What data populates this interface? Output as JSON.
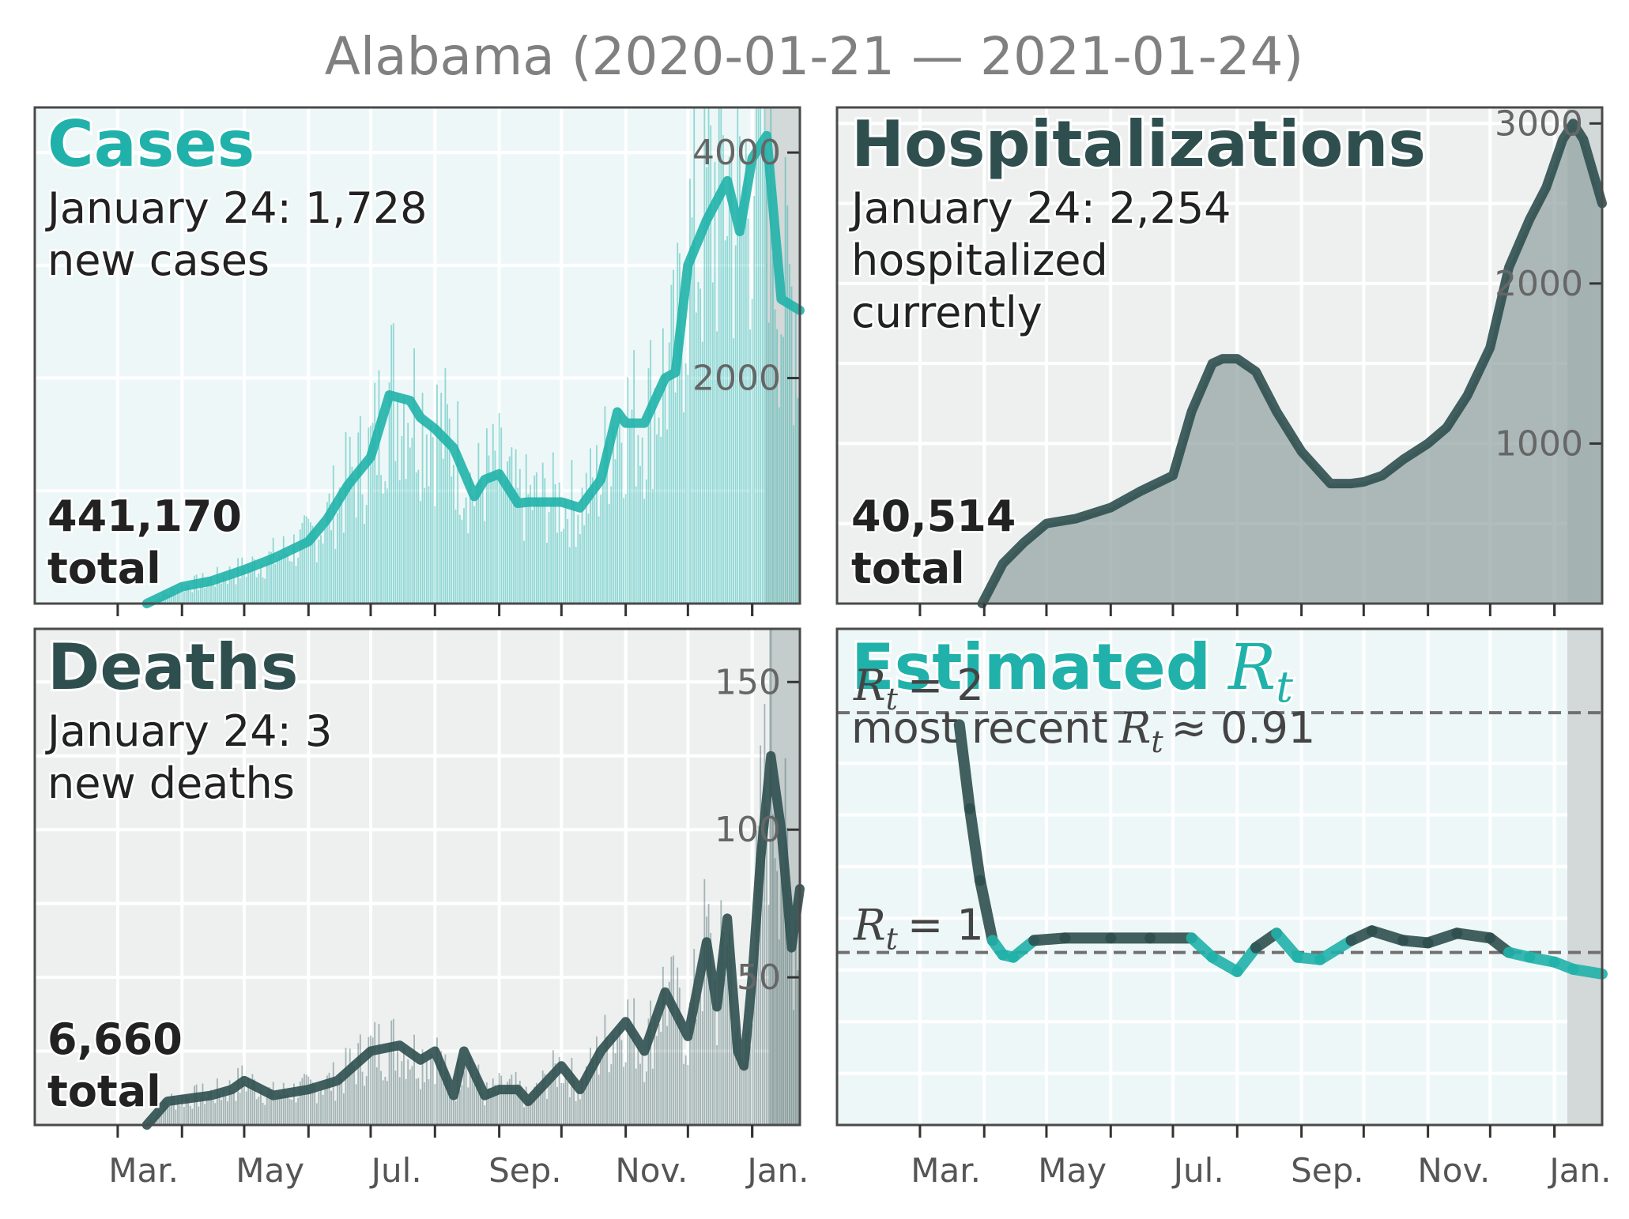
{
  "title": "Alabama (2020-01-21 — 2021-01-24)",
  "colors": {
    "teal": "#20b2aa",
    "dark": "#2f4f4f",
    "bg_light": "#eef7f7",
    "bg_gray": "#eef0f0",
    "shade": "#d3d8d8"
  },
  "month_labels": [
    "Mar.",
    "May",
    "Jul.",
    "Sep.",
    "Nov.",
    "Jan."
  ],
  "chart_data": [
    {
      "id": "cases",
      "type": "bar",
      "title": "Cases",
      "subtitle_1": "January 24: 1,728",
      "subtitle_2": "new cases",
      "total_value": "441,170",
      "total_label": "total",
      "yticks": [
        "2000",
        "4000"
      ],
      "ylim": [
        0,
        4400
      ],
      "smoothed": {
        "x": [
          "2020-03-15",
          "2020-04-01",
          "2020-04-15",
          "2020-05-01",
          "2020-05-15",
          "2020-06-01",
          "2020-06-10",
          "2020-06-20",
          "2020-07-01",
          "2020-07-10",
          "2020-07-20",
          "2020-07-25",
          "2020-08-01",
          "2020-08-10",
          "2020-08-20",
          "2020-08-25",
          "2020-09-01",
          "2020-09-10",
          "2020-09-15",
          "2020-09-22",
          "2020-10-01",
          "2020-10-10",
          "2020-10-20",
          "2020-10-28",
          "2020-11-01",
          "2020-11-10",
          "2020-11-20",
          "2020-11-25",
          "2020-12-01",
          "2020-12-10",
          "2020-12-20",
          "2020-12-26",
          "2021-01-01",
          "2021-01-08",
          "2021-01-15",
          "2021-01-24"
        ],
        "y": [
          0,
          150,
          200,
          300,
          400,
          550,
          750,
          1050,
          1300,
          1850,
          1800,
          1650,
          1550,
          1380,
          950,
          1100,
          1150,
          890,
          900,
          900,
          900,
          850,
          1100,
          1700,
          1600,
          1600,
          2000,
          2050,
          3000,
          3400,
          3750,
          3300,
          3950,
          4150,
          2700,
          2600
        ]
      }
    },
    {
      "id": "hospitalizations",
      "type": "area",
      "title": "Hospitalizations",
      "subtitle_1": "January 24: 2,254",
      "subtitle_2": "hospitalized",
      "subtitle_3": "currently",
      "total_value": "40,514",
      "total_label": "total",
      "yticks": [
        "1000",
        "2000",
        "3000"
      ],
      "ylim": [
        0,
        3100
      ],
      "smoothed": {
        "x": [
          "2020-03-31",
          "2020-04-10",
          "2020-04-20",
          "2020-05-01",
          "2020-05-15",
          "2020-06-01",
          "2020-06-15",
          "2020-07-01",
          "2020-07-10",
          "2020-07-20",
          "2020-07-25",
          "2020-08-01",
          "2020-08-10",
          "2020-08-20",
          "2020-09-01",
          "2020-09-15",
          "2020-09-25",
          "2020-10-01",
          "2020-10-10",
          "2020-10-20",
          "2020-11-01",
          "2020-11-10",
          "2020-11-20",
          "2020-12-01",
          "2020-12-10",
          "2020-12-20",
          "2020-12-28",
          "2021-01-05",
          "2021-01-10",
          "2021-01-15",
          "2021-01-24"
        ],
        "y": [
          0,
          250,
          380,
          500,
          530,
          600,
          700,
          800,
          1200,
          1500,
          1530,
          1530,
          1450,
          1200,
          950,
          750,
          750,
          760,
          800,
          900,
          1000,
          1100,
          1300,
          1600,
          2100,
          2400,
          2600,
          2900,
          3000,
          2900,
          2500
        ]
      }
    },
    {
      "id": "deaths",
      "type": "bar",
      "title": "Deaths",
      "subtitle_1": "January 24: 3",
      "subtitle_2": "new deaths",
      "total_value": "6,660",
      "total_label": "total",
      "yticks": [
        "50",
        "100",
        "150"
      ],
      "ylim": [
        0,
        168
      ],
      "smoothed": {
        "x": [
          "2020-03-15",
          "2020-03-25",
          "2020-04-15",
          "2020-04-25",
          "2020-05-01",
          "2020-05-15",
          "2020-06-01",
          "2020-06-15",
          "2020-07-01",
          "2020-07-15",
          "2020-07-25",
          "2020-08-01",
          "2020-08-10",
          "2020-08-15",
          "2020-08-25",
          "2020-09-01",
          "2020-09-10",
          "2020-09-15",
          "2020-10-01",
          "2020-10-10",
          "2020-10-20",
          "2020-11-01",
          "2020-11-10",
          "2020-11-20",
          "2020-12-01",
          "2020-12-10",
          "2020-12-15",
          "2020-12-20",
          "2020-12-25",
          "2020-12-28",
          "2021-01-01",
          "2021-01-05",
          "2021-01-10",
          "2021-01-15",
          "2021-01-20",
          "2021-01-24"
        ],
        "y": [
          0,
          8,
          10,
          12,
          15,
          10,
          12,
          15,
          25,
          27,
          22,
          25,
          10,
          25,
          10,
          12,
          12,
          8,
          20,
          12,
          25,
          35,
          25,
          45,
          30,
          62,
          40,
          70,
          25,
          20,
          50,
          90,
          125,
          100,
          60,
          80
        ]
      }
    },
    {
      "id": "rt",
      "type": "line",
      "title_word": "Estimated",
      "title_symbol": "R",
      "title_sub": "t",
      "subtitle_prefix": "most recent",
      "subtitle_symbol": "R",
      "subtitle_sub": "t",
      "subtitle_suffix": "≈ 0.91",
      "ref_lines": [
        {
          "value": 2,
          "symbol": "R",
          "sub": "t",
          "text": "= 2"
        },
        {
          "value": 1,
          "symbol": "R",
          "sub": "t",
          "text": "= 1"
        }
      ],
      "ylim": [
        0.0,
        2.0
      ],
      "series": {
        "x": [
          "2020-03-20",
          "2020-03-25",
          "2020-03-30",
          "2020-04-05",
          "2020-04-10",
          "2020-04-15",
          "2020-04-25",
          "2020-05-10",
          "2020-06-01",
          "2020-06-20",
          "2020-07-10",
          "2020-07-20",
          "2020-08-01",
          "2020-08-10",
          "2020-08-20",
          "2020-08-30",
          "2020-09-10",
          "2020-09-25",
          "2020-10-05",
          "2020-10-20",
          "2020-11-01",
          "2020-11-15",
          "2020-12-01",
          "2020-12-10",
          "2020-12-20",
          "2021-01-01",
          "2021-01-10",
          "2021-01-24"
        ],
        "y": [
          1.95,
          1.6,
          1.3,
          1.05,
          0.99,
          0.98,
          1.05,
          1.06,
          1.06,
          1.06,
          1.06,
          0.98,
          0.92,
          1.02,
          1.08,
          0.98,
          0.97,
          1.05,
          1.09,
          1.05,
          1.04,
          1.08,
          1.06,
          1.0,
          0.98,
          0.96,
          0.93,
          0.91
        ]
      }
    }
  ]
}
